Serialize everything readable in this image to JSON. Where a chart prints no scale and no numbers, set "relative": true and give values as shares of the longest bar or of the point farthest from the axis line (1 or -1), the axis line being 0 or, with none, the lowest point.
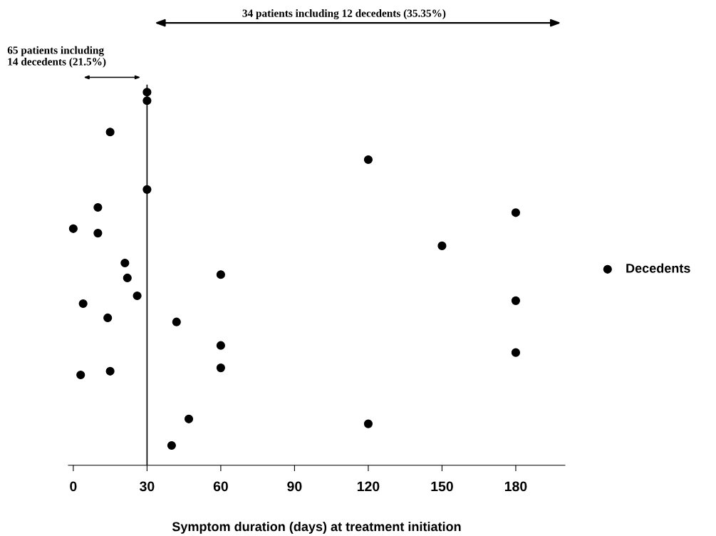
{
  "chart_data": {
    "type": "scatter",
    "relative": true,
    "xlabel": "Symptom duration (days) at treatment initiation",
    "xlim": [
      -2,
      200
    ],
    "xticks": [
      0,
      30,
      60,
      90,
      120,
      150,
      180
    ],
    "series": [
      {
        "name": "Decedents",
        "color": "#000000",
        "x": [
          30,
          30,
          15,
          120,
          30,
          10,
          180,
          0,
          10,
          150,
          21,
          22,
          60,
          26,
          180,
          4,
          14,
          42,
          60,
          180,
          60,
          15,
          3,
          47,
          120,
          40
        ],
        "values": [
          1.0,
          0.977,
          0.893,
          0.819,
          0.739,
          0.691,
          0.677,
          0.634,
          0.622,
          0.588,
          0.542,
          0.502,
          0.511,
          0.454,
          0.441,
          0.433,
          0.395,
          0.384,
          0.321,
          0.302,
          0.261,
          0.252,
          0.242,
          0.124,
          0.111,
          0.053
        ]
      }
    ],
    "ref_lines": [
      {
        "axis": "x",
        "value": 30,
        "color": "#000000"
      }
    ],
    "annotations": [
      "65 patients including\n14 decedents (21.5%)",
      "34 patients including 12 decedents (35.35%)"
    ],
    "legend": "right",
    "marker": "circle",
    "grid": false
  }
}
